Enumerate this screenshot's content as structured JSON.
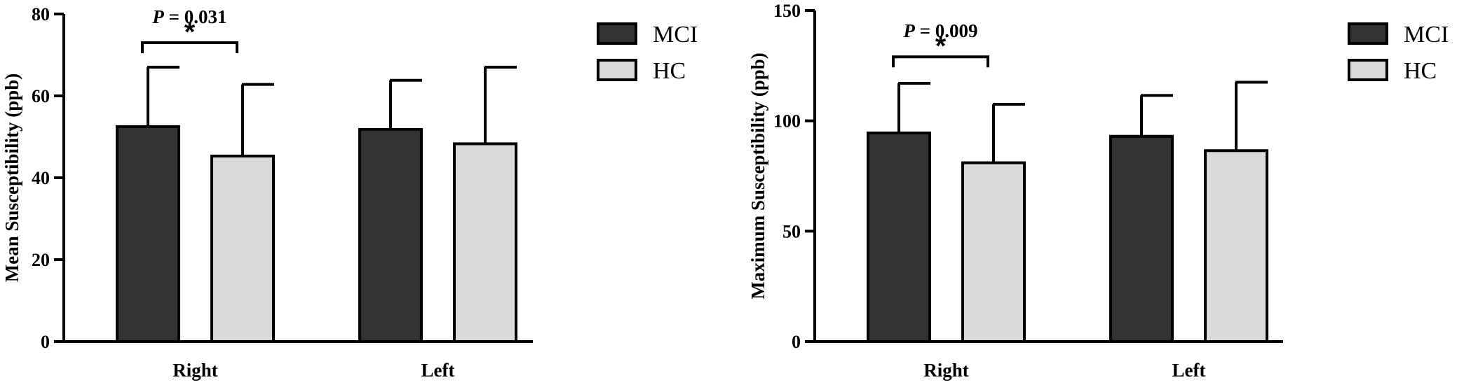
{
  "chart_data": [
    {
      "type": "bar",
      "categories": [
        "Right",
        "Left"
      ],
      "ylabel": "Mean Susceptibility (ppb)",
      "ylim": [
        0,
        80
      ],
      "yticks": [
        "0",
        "20",
        "40",
        "60",
        "80"
      ],
      "series": [
        {
          "name": "MCI",
          "values": [
            52.5,
            51.8
          ],
          "errors": [
            14.5,
            12.0
          ],
          "color": "#333333"
        },
        {
          "name": "HC",
          "values": [
            45.3,
            48.3
          ],
          "errors": [
            17.5,
            18.7
          ],
          "color": "#d9d9d9"
        }
      ],
      "annotation": {
        "p_label": "P",
        "p_value": " = 0.031",
        "star": "*",
        "category": "Right",
        "bracket_y": 73
      },
      "legend_position": "top-right",
      "grid": false
    },
    {
      "type": "bar",
      "categories": [
        "Right",
        "Left"
      ],
      "ylabel": "Maximum Susceptibility (ppb)",
      "ylim": [
        0,
        150
      ],
      "yticks": [
        "0",
        "50",
        "100",
        "150"
      ],
      "series": [
        {
          "name": "MCI",
          "values": [
            94.5,
            93.0
          ],
          "errors": [
            22.5,
            18.5
          ],
          "color": "#333333"
        },
        {
          "name": "HC",
          "values": [
            81.0,
            86.5
          ],
          "errors": [
            26.5,
            31.0
          ],
          "color": "#d9d9d9"
        }
      ],
      "annotation": {
        "p_label": "P",
        "p_value": " = 0.009",
        "star": "*",
        "category": "Right",
        "bracket_y": 129
      },
      "legend_position": "top-right",
      "grid": false
    }
  ]
}
